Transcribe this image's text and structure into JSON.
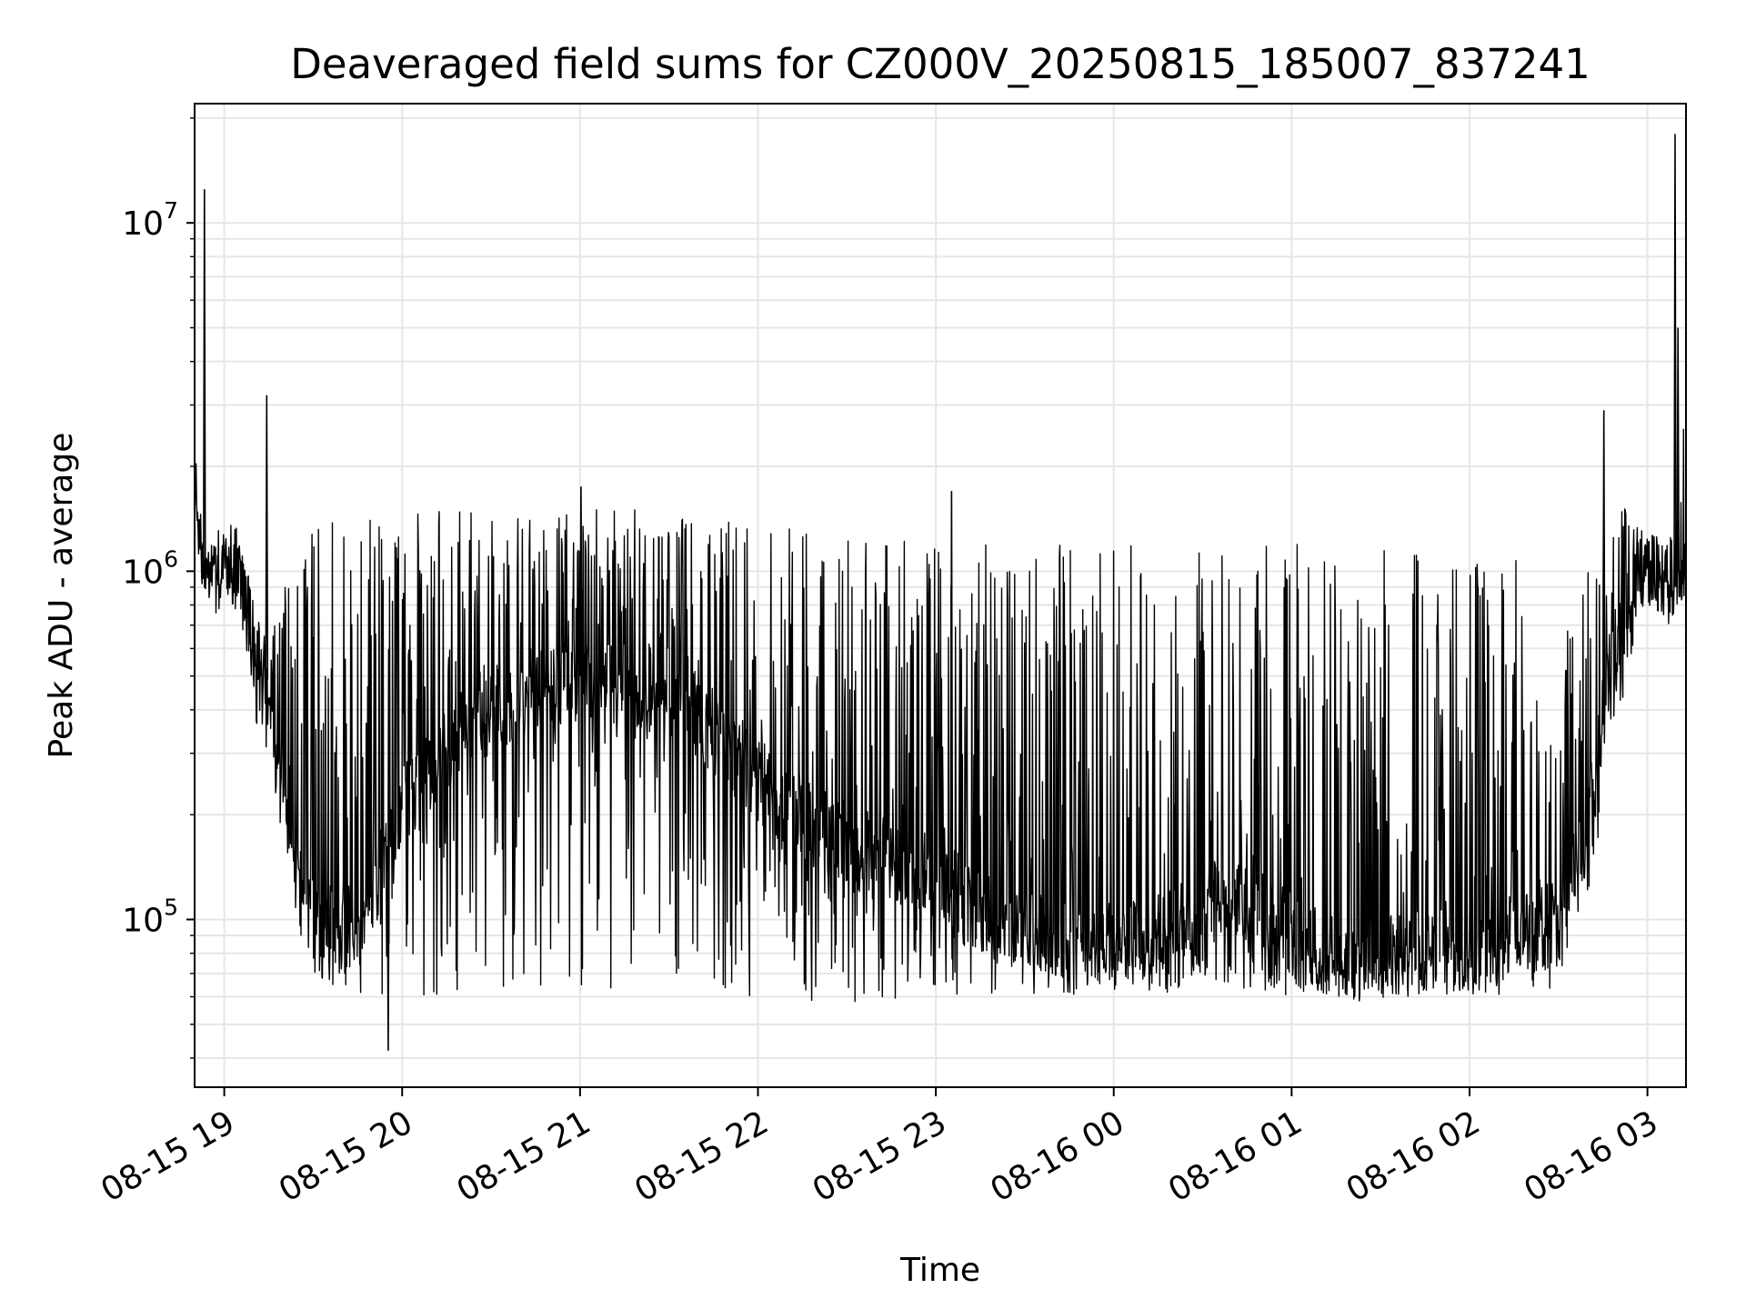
{
  "chart_data": {
    "type": "line",
    "title": "Deaveraged field sums for CZ000V_20250815_185007_837241",
    "xlabel": "Time",
    "ylabel": "Peak ADU - average",
    "x_scale": "time",
    "y_scale": "log",
    "xlim": [
      "2025-08-15 18:50",
      "2025-08-16 03:13"
    ],
    "ylim": [
      33000,
      22000000
    ],
    "x_tick_labels": [
      "08-15 19",
      "08-15 20",
      "08-15 21",
      "08-15 22",
      "08-15 23",
      "08-16 00",
      "08-16 01",
      "08-16 02",
      "08-16 03"
    ],
    "y_tick_labels": [
      {
        "base": "10",
        "exp": "5"
      },
      {
        "base": "10",
        "exp": "6"
      },
      {
        "base": "10",
        "exp": "7"
      }
    ],
    "grid": true,
    "line_color": "#000000",
    "series": [
      {
        "x": [
          "2025-08-15 18:50",
          "2025-08-15 18:51",
          "2025-08-15 18:53",
          "2025-08-15 18:55",
          "2025-08-15 18:57",
          "2025-08-15 19:00",
          "2025-08-15 19:05",
          "2025-08-15 19:10",
          "2025-08-15 19:12",
          "2025-08-15 19:15",
          "2025-08-15 19:20",
          "2025-08-15 19:25",
          "2025-08-15 19:30",
          "2025-08-15 19:35",
          "2025-08-15 19:40",
          "2025-08-15 19:50",
          "2025-08-15 20:00",
          "2025-08-15 20:15",
          "2025-08-15 20:30",
          "2025-08-15 20:45",
          "2025-08-15 21:00",
          "2025-08-15 21:15",
          "2025-08-15 21:30",
          "2025-08-15 21:45",
          "2025-08-15 22:00",
          "2025-08-15 22:20",
          "2025-08-15 22:40",
          "2025-08-15 23:00",
          "2025-08-15 23:20",
          "2025-08-15 23:40",
          "2025-08-16 00:00",
          "2025-08-16 00:20",
          "2025-08-16 00:40",
          "2025-08-16 01:00",
          "2025-08-16 01:20",
          "2025-08-16 01:40",
          "2025-08-16 02:00",
          "2025-08-16 02:20",
          "2025-08-16 02:30",
          "2025-08-16 02:40",
          "2025-08-16 02:45",
          "2025-08-16 02:50",
          "2025-08-16 02:55",
          "2025-08-16 03:00",
          "2025-08-16 03:05",
          "2025-08-16 03:09",
          "2025-08-16 03:12"
        ],
        "baseline": [
          2000000,
          1500000,
          950000,
          1050000,
          1000000,
          1050000,
          1000000,
          600000,
          500000,
          480000,
          250000,
          150000,
          100000,
          95000,
          90000,
          120000,
          220000,
          300000,
          400000,
          450000,
          500000,
          480000,
          450000,
          350000,
          250000,
          180000,
          150000,
          130000,
          100000,
          90000,
          85000,
          95000,
          120000,
          90000,
          75000,
          80000,
          85000,
          90000,
          100000,
          200000,
          400000,
          600000,
          900000,
          1050000,
          1000000,
          900000,
          1100000
        ],
        "band_low": [
          1500000,
          1200000,
          800000,
          850000,
          800000,
          800000,
          750000,
          400000,
          300000,
          300000,
          150000,
          90000,
          70000,
          65000,
          60000,
          58000,
          60000,
          58000,
          60000,
          58000,
          60000,
          60000,
          62000,
          60000,
          60000,
          58000,
          58000,
          60000,
          60000,
          60000,
          60000,
          60000,
          62000,
          60000,
          58000,
          60000,
          60000,
          60000,
          65000,
          120000,
          200000,
          350000,
          600000,
          800000,
          750000,
          650000,
          800000
        ],
        "band_high": [
          2500000,
          1800000,
          1200000,
          1200000,
          1200000,
          1200000,
          1200000,
          900000,
          700000,
          650000,
          900000,
          1100000,
          1300000,
          1400000,
          1400000,
          1400000,
          1450000,
          1500000,
          1450000,
          1500000,
          1500000,
          1550000,
          1450000,
          1400000,
          1350000,
          1300000,
          1300000,
          1250000,
          1200000,
          1200000,
          1200000,
          1200000,
          1250000,
          1250000,
          1200000,
          1250000,
          1250000,
          1250000,
          900000,
          1000000,
          1400000,
          1600000,
          1500000,
          1300000,
          1300000,
          1500000,
          3000000
        ],
        "extremes": [
          {
            "x": "2025-08-15 18:53",
            "y": 12500000
          },
          {
            "x": "2025-08-15 19:14",
            "y": 3200000
          },
          {
            "x": "2025-08-15 19:55",
            "y": 42000
          },
          {
            "x": "2025-08-15 21:00",
            "y": 1750000
          },
          {
            "x": "2025-08-15 23:05",
            "y": 1700000
          },
          {
            "x": "2025-08-16 02:45",
            "y": 2900000
          },
          {
            "x": "2025-08-16 03:09",
            "y": 18000000
          },
          {
            "x": "2025-08-16 03:10",
            "y": 5000000
          }
        ]
      }
    ]
  }
}
